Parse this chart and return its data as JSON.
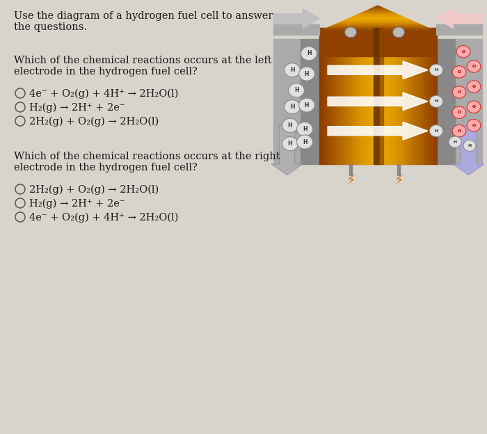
{
  "bg_color": "#d8d4cc",
  "text_color": "#1a1a1a",
  "header_text_line1": "Use the diagram of a hydrogen fuel cell to answer",
  "header_text_line2": "the questions.",
  "q1_line1": "Which of the chemical reactions occurs at the left",
  "q1_line2": "electrode in the hydrogen fuel cell?",
  "q1_options": [
    "4e⁻ + O₂(g) + 4H⁺ → 2H₂O(l)",
    "H₂(g) → 2H⁺ + 2e⁻",
    "2H₂(g) + O₂(g) → 2H₂O(l)"
  ],
  "q2_line1": "Which of the chemical reactions occurs at the right",
  "q2_line2": "electrode in the hydrogen fuel cell?",
  "q2_options": [
    "2H₂(g) + O₂(g) → 2H₂O(l)",
    "H₂(g) → 2H⁺ + 2e⁻",
    "4e⁻ + O₂(g) + 4H⁺ → 2H₂O(l)"
  ]
}
